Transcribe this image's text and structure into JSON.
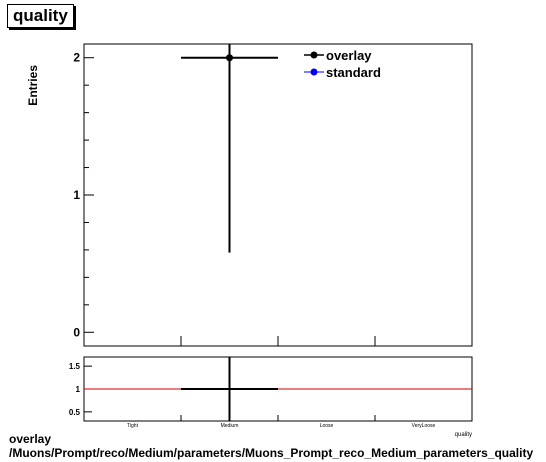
{
  "title": "quality",
  "main_plot": {
    "ylabel": "Entries",
    "yticks": [
      "0",
      "1",
      "2"
    ],
    "legend": [
      {
        "label": "overlay",
        "color": "#000000"
      },
      {
        "label": "standard",
        "color": "#0000ff"
      }
    ]
  },
  "ratio_plot": {
    "yticks": [
      "0.5",
      "1",
      "1.5"
    ],
    "xticks": [
      "Tight",
      "Medium",
      "Loose",
      "VeryLoose"
    ],
    "xlabel": "quality",
    "ratio_line_color": "#cc0000"
  },
  "caption": {
    "line1": "overlay",
    "line2": "/Muons/Prompt/reco/Medium/parameters/Muons_Prompt_reco_Medium_parameters_quality"
  },
  "chart_data": [
    {
      "type": "scatter",
      "title": "quality",
      "ylabel": "Entries",
      "categories": [
        "Tight",
        "Medium",
        "Loose",
        "VeryLoose"
      ],
      "ylim": [
        -0.1,
        2.1
      ],
      "series": [
        {
          "name": "overlay",
          "points": [
            {
              "category": "Medium",
              "y": 2,
              "yerr_low": 1.42,
              "yerr_high": 2.1
            }
          ]
        },
        {
          "name": "standard",
          "points": []
        }
      ],
      "legend": "top-right"
    },
    {
      "type": "line",
      "categories": [
        "Tight",
        "Medium",
        "Loose",
        "VeryLoose"
      ],
      "xlabel": "quality",
      "ylim": [
        0.3,
        1.7
      ],
      "reference_line": 1,
      "series": [
        {
          "name": "",
          "points": [
            {
              "category": "Medium",
              "y": 1
            }
          ]
        }
      ]
    }
  ]
}
